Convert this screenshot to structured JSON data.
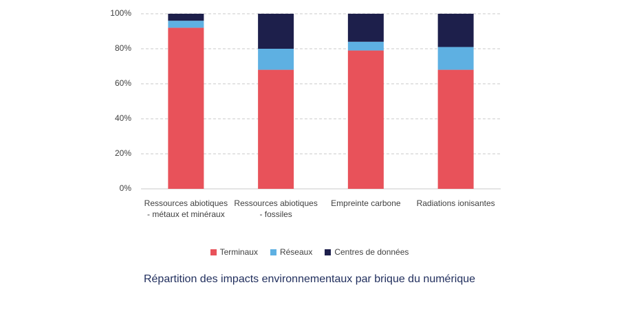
{
  "chart_data": {
    "type": "stacked_bar",
    "title": "Répartition des impacts environnementaux par brique du numérique",
    "categories": [
      "Ressources abiotiques - métaux et minéraux",
      "Ressources abiotiques - fossiles",
      "Empreinte carbone",
      "Radiations ionisantes"
    ],
    "series": [
      {
        "name": "Terminaux",
        "color": "#e8525a",
        "values": [
          92,
          68,
          79,
          68
        ]
      },
      {
        "name": "Réseaux",
        "color": "#5eb0e2",
        "values": [
          4,
          12,
          5,
          13
        ]
      },
      {
        "name": "Centres de données",
        "color": "#1d1f4b",
        "values": [
          4,
          20,
          16,
          19
        ]
      }
    ],
    "ylim": [
      0,
      100
    ],
    "yticks": [
      {
        "value": 0,
        "label": "0%"
      },
      {
        "value": 20,
        "label": "20%"
      },
      {
        "value": 40,
        "label": "40%"
      },
      {
        "value": 60,
        "label": "60%"
      },
      {
        "value": 80,
        "label": "80%"
      },
      {
        "value": 100,
        "label": "100%"
      }
    ],
    "grid": true,
    "legend": "bottom"
  }
}
